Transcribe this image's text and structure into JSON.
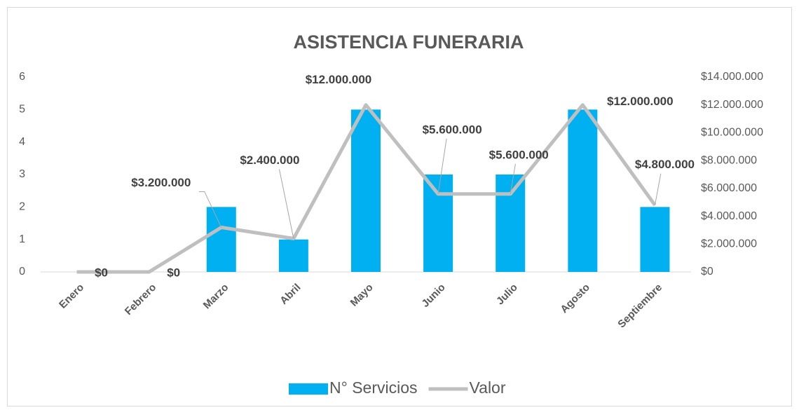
{
  "chart_data": {
    "type": "bar",
    "title": "ASISTENCIA FUNERARIA",
    "categories": [
      "Enero",
      "Febrero",
      "Marzo",
      "Abril",
      "Mayo",
      "Junio",
      "Julio",
      "Agosto",
      "Septiembre"
    ],
    "series": [
      {
        "name": "N° Servicios",
        "color": "#00b0f0",
        "values": [
          0,
          0,
          2,
          1,
          5,
          3,
          3,
          5,
          2
        ]
      },
      {
        "name": "Valor",
        "type": "line",
        "axis": "y2",
        "color": "#bfbfbf",
        "values": [
          0,
          0,
          3200000,
          2400000,
          12000000,
          5600000,
          5600000,
          12000000,
          4800000
        ],
        "value_labels": [
          "$0",
          "$0",
          "$3.200.000",
          "$2.400.000",
          "$12.000.000",
          "$5.600.000",
          "$5.600.000",
          "$12.000.000",
          "$4.800.000"
        ]
      }
    ],
    "ylim": [
      0,
      6
    ],
    "yticks": [
      0,
      1,
      2,
      3,
      4,
      5,
      6
    ],
    "y2lim": [
      0,
      14000000
    ],
    "y2ticks": [
      {
        "value": 0,
        "label": "$0"
      },
      {
        "value": 2000000,
        "label": "$2.000.000"
      },
      {
        "value": 4000000,
        "label": "$4.000.000"
      },
      {
        "value": 6000000,
        "label": "$6.000.000"
      },
      {
        "value": 8000000,
        "label": "$8.000.000"
      },
      {
        "value": 10000000,
        "label": "$10.000.000"
      },
      {
        "value": 12000000,
        "label": "$12.000.000"
      },
      {
        "value": 14000000,
        "label": "$14.000.000"
      }
    ],
    "grid": false,
    "legend": "bottom"
  }
}
